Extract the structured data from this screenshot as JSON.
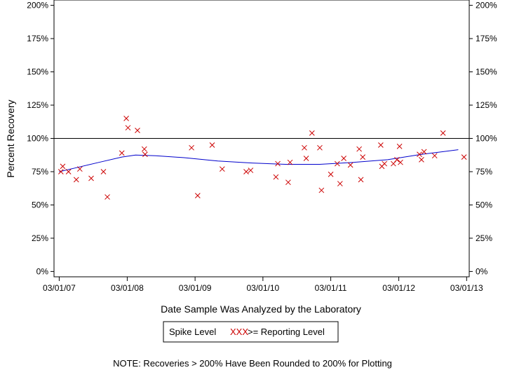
{
  "chart_data": {
    "type": "scatter",
    "xlabel": "Date Sample Was Analyzed by the Laboratory",
    "ylabel": "Percent Recovery",
    "xlim": [
      "2007-02-01",
      "2013-03-15"
    ],
    "ylim": [
      -4,
      204
    ],
    "x_ticks": [
      "03/01/07",
      "03/01/08",
      "03/01/09",
      "03/01/10",
      "03/01/11",
      "03/01/12",
      "03/01/13"
    ],
    "y_ticks": [
      "0%",
      "25%",
      "50%",
      "75%",
      "100%",
      "125%",
      "150%",
      "175%",
      "200%"
    ],
    "y_tick_values": [
      0,
      25,
      50,
      75,
      100,
      125,
      150,
      175,
      200
    ],
    "reference_line": 100,
    "legend": {
      "box_title": "Spike Level",
      "entries": [
        {
          "symbol": "XXX",
          "label": ">= Reporting Level",
          "color": "#cc0000"
        }
      ]
    },
    "note": "NOTE: Recoveries > 200% Have Been Rounded to 200% for Plotting",
    "colors": {
      "points": "#cc0000",
      "trend": "#0000cc",
      "axis": "#000000"
    },
    "series": [
      {
        "marker": "x",
        "points": [
          {
            "x": "2007-03-10",
            "y": 75
          },
          {
            "x": "2007-03-20",
            "y": 79
          },
          {
            "x": "2007-04-20",
            "y": 75
          },
          {
            "x": "2007-06-01",
            "y": 69
          },
          {
            "x": "2007-06-20",
            "y": 77
          },
          {
            "x": "2007-08-20",
            "y": 70
          },
          {
            "x": "2007-10-25",
            "y": 75
          },
          {
            "x": "2007-11-15",
            "y": 56
          },
          {
            "x": "2008-02-01",
            "y": 89
          },
          {
            "x": "2008-02-25",
            "y": 115
          },
          {
            "x": "2008-03-05",
            "y": 108
          },
          {
            "x": "2008-04-25",
            "y": 106
          },
          {
            "x": "2008-06-01",
            "y": 92
          },
          {
            "x": "2008-06-05",
            "y": 88
          },
          {
            "x": "2009-02-10",
            "y": 93
          },
          {
            "x": "2009-03-15",
            "y": 57
          },
          {
            "x": "2009-06-01",
            "y": 95
          },
          {
            "x": "2009-07-25",
            "y": 77
          },
          {
            "x": "2009-12-01",
            "y": 75
          },
          {
            "x": "2009-12-25",
            "y": 76
          },
          {
            "x": "2010-05-10",
            "y": 71
          },
          {
            "x": "2010-05-20",
            "y": 81
          },
          {
            "x": "2010-07-15",
            "y": 67
          },
          {
            "x": "2010-07-25",
            "y": 82
          },
          {
            "x": "2010-10-10",
            "y": 93
          },
          {
            "x": "2010-10-20",
            "y": 85
          },
          {
            "x": "2010-11-20",
            "y": 104
          },
          {
            "x": "2011-01-01",
            "y": 93
          },
          {
            "x": "2011-01-10",
            "y": 61
          },
          {
            "x": "2011-03-01",
            "y": 73
          },
          {
            "x": "2011-04-05",
            "y": 81
          },
          {
            "x": "2011-04-20",
            "y": 66
          },
          {
            "x": "2011-05-10",
            "y": 85
          },
          {
            "x": "2011-06-15",
            "y": 80
          },
          {
            "x": "2011-08-01",
            "y": 92
          },
          {
            "x": "2011-08-10",
            "y": 69
          },
          {
            "x": "2011-08-20",
            "y": 86
          },
          {
            "x": "2011-11-25",
            "y": 95
          },
          {
            "x": "2011-12-01",
            "y": 79
          },
          {
            "x": "2011-12-15",
            "y": 81
          },
          {
            "x": "2012-02-01",
            "y": 81
          },
          {
            "x": "2012-02-20",
            "y": 84
          },
          {
            "x": "2012-03-05",
            "y": 94
          },
          {
            "x": "2012-03-10",
            "y": 82
          },
          {
            "x": "2012-06-20",
            "y": 88
          },
          {
            "x": "2012-07-01",
            "y": 84
          },
          {
            "x": "2012-07-15",
            "y": 90
          },
          {
            "x": "2012-09-10",
            "y": 87
          },
          {
            "x": "2012-10-25",
            "y": 104
          },
          {
            "x": "2013-02-15",
            "y": 86
          }
        ]
      },
      {
        "type": "line",
        "points": [
          {
            "x": "2007-03-01",
            "y": 75
          },
          {
            "x": "2007-06-01",
            "y": 78
          },
          {
            "x": "2007-10-01",
            "y": 82
          },
          {
            "x": "2008-02-01",
            "y": 86
          },
          {
            "x": "2008-04-15",
            "y": 87.5
          },
          {
            "x": "2008-08-01",
            "y": 87
          },
          {
            "x": "2009-01-01",
            "y": 85.5
          },
          {
            "x": "2009-07-01",
            "y": 83
          },
          {
            "x": "2010-01-01",
            "y": 81.5
          },
          {
            "x": "2010-07-01",
            "y": 80.5
          },
          {
            "x": "2011-01-01",
            "y": 80.5
          },
          {
            "x": "2011-07-01",
            "y": 82
          },
          {
            "x": "2012-01-01",
            "y": 84
          },
          {
            "x": "2012-07-01",
            "y": 88
          },
          {
            "x": "2013-01-15",
            "y": 91.5
          }
        ]
      }
    ]
  }
}
